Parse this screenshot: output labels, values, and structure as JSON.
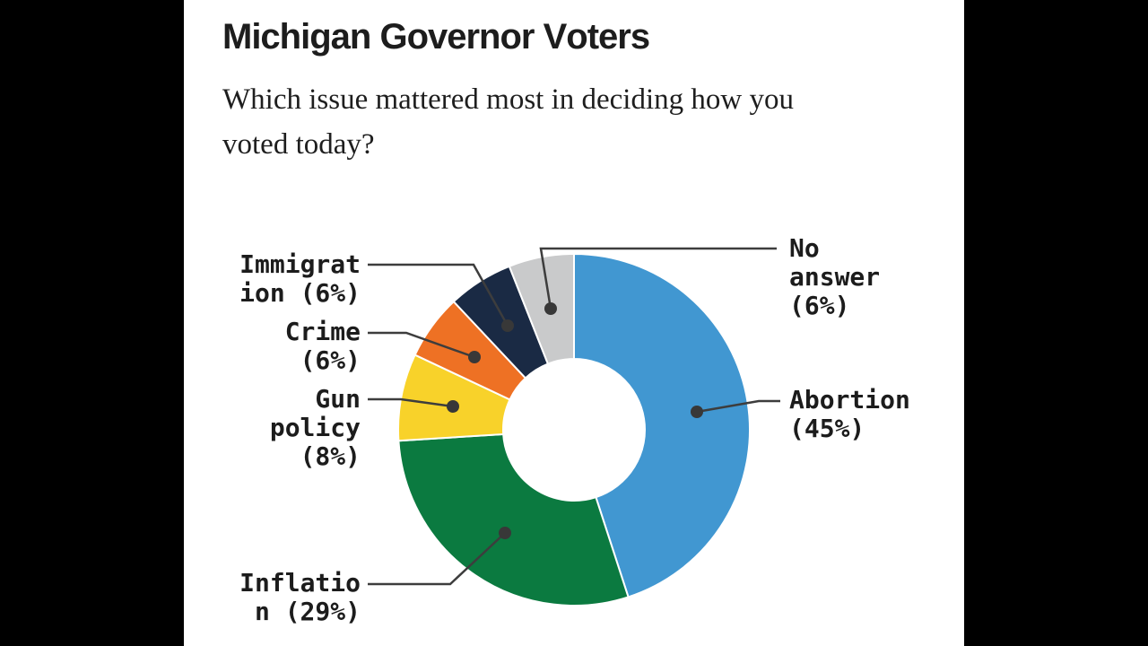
{
  "frame": {
    "background": "#000000",
    "panel_background": "#ffffff",
    "text_color": "#1d1d1d",
    "leader_line_color": "#3d3d3d"
  },
  "header": {
    "title": "Michigan Governor Voters",
    "subtitle_line1": "Which issue mattered most in deciding how you",
    "subtitle_line2": "voted today?"
  },
  "chart_data": {
    "type": "pie",
    "variant": "donut",
    "title": "Michigan Governor Voters",
    "question": "Which issue mattered most in deciding how you voted today?",
    "unit": "%",
    "total": 100,
    "start_angle_deg": 0,
    "direction": "clockwise",
    "legend_position": "callout-labels",
    "slices": [
      {
        "label": "Abortion",
        "value": 45,
        "color": "#4197d1",
        "display_lines": {
          "l1": "Abortion",
          "l2": "(45%)"
        }
      },
      {
        "label": "Inflation",
        "value": 29,
        "color": "#0b7a40",
        "display_lines": {
          "l1": "Inflatio",
          "l2": "n (29%)"
        }
      },
      {
        "label": "Gun policy",
        "value": 8,
        "color": "#f8d22a",
        "display_lines": {
          "l1": "Gun",
          "l2": "policy",
          "l3": "(8%)"
        }
      },
      {
        "label": "Crime",
        "value": 6,
        "color": "#ee7124",
        "display_lines": {
          "l1": "Crime",
          "l2": "(6%)"
        }
      },
      {
        "label": "Immigration",
        "value": 6,
        "color": "#1a2a44",
        "display_lines": {
          "l1": "Immigrat",
          "l2": "ion (6%)"
        }
      },
      {
        "label": "No answer",
        "value": 6,
        "color": "#c9cacb",
        "display_lines": {
          "l1": "No",
          "l2": "answer",
          "l3": "(6%)"
        }
      }
    ]
  }
}
